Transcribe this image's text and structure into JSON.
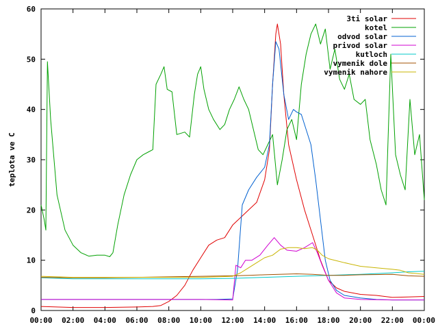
{
  "chart_data": {
    "type": "line",
    "ylabel": "teplota ve C",
    "xlabel": "",
    "ylim": [
      0,
      60
    ],
    "xlim": [
      0,
      24
    ],
    "x_ticks": [
      "00:00",
      "02:00",
      "04:00",
      "06:00",
      "08:00",
      "10:00",
      "12:00",
      "14:00",
      "16:00",
      "18:00",
      "20:00",
      "22:00",
      "00:00"
    ],
    "y_ticks": [
      0,
      10,
      20,
      30,
      40,
      50,
      60
    ],
    "legend_position": "top-right",
    "grid": false,
    "series": [
      {
        "name": "3ti solar",
        "color": "#e00000",
        "points": [
          [
            0,
            0.8
          ],
          [
            2,
            0.6
          ],
          [
            4,
            0.6
          ],
          [
            6,
            0.7
          ],
          [
            7,
            0.8
          ],
          [
            7.5,
            1
          ],
          [
            8,
            1.8
          ],
          [
            8.5,
            3
          ],
          [
            9,
            5
          ],
          [
            9.5,
            8
          ],
          [
            10,
            10.5
          ],
          [
            10.5,
            13
          ],
          [
            11,
            14
          ],
          [
            11.5,
            14.5
          ],
          [
            12,
            17
          ],
          [
            12.5,
            18.5
          ],
          [
            13,
            20
          ],
          [
            13.5,
            21.5
          ],
          [
            14,
            26
          ],
          [
            14.3,
            32
          ],
          [
            14.5,
            45
          ],
          [
            14.7,
            55
          ],
          [
            14.8,
            57
          ],
          [
            15,
            53
          ],
          [
            15.2,
            43
          ],
          [
            15.5,
            33
          ],
          [
            16,
            26
          ],
          [
            16.5,
            20
          ],
          [
            17,
            15
          ],
          [
            17.5,
            10
          ],
          [
            18,
            6
          ],
          [
            18.5,
            4.5
          ],
          [
            19,
            3.8
          ],
          [
            20,
            3.2
          ],
          [
            21,
            3
          ],
          [
            22,
            2.6
          ],
          [
            23,
            2.7
          ],
          [
            24,
            2.8
          ]
        ]
      },
      {
        "name": "kotel",
        "color": "#00a000",
        "points": [
          [
            0,
            21
          ],
          [
            0.2,
            18
          ],
          [
            0.3,
            16
          ],
          [
            0.4,
            49.5
          ],
          [
            0.6,
            38
          ],
          [
            1,
            23
          ],
          [
            1.5,
            16
          ],
          [
            2,
            13
          ],
          [
            2.5,
            11.5
          ],
          [
            3,
            10.8
          ],
          [
            3.5,
            11
          ],
          [
            4,
            11
          ],
          [
            4.3,
            10.7
          ],
          [
            4.5,
            11.5
          ],
          [
            4.8,
            17
          ],
          [
            5.2,
            23
          ],
          [
            5.6,
            27
          ],
          [
            6,
            30
          ],
          [
            6.4,
            31
          ],
          [
            6.7,
            31.5
          ],
          [
            7,
            32
          ],
          [
            7.2,
            45
          ],
          [
            7.5,
            47
          ],
          [
            7.7,
            48.5
          ],
          [
            7.9,
            44
          ],
          [
            8.2,
            43.5
          ],
          [
            8.5,
            35
          ],
          [
            9,
            35.5
          ],
          [
            9.3,
            34.5
          ],
          [
            9.6,
            43
          ],
          [
            9.8,
            47
          ],
          [
            10,
            48.5
          ],
          [
            10.2,
            44
          ],
          [
            10.5,
            40
          ],
          [
            10.8,
            38
          ],
          [
            11.2,
            36
          ],
          [
            11.5,
            37
          ],
          [
            11.8,
            40
          ],
          [
            12.1,
            42
          ],
          [
            12.4,
            44.5
          ],
          [
            12.7,
            42
          ],
          [
            13,
            40
          ],
          [
            13.3,
            36
          ],
          [
            13.6,
            32
          ],
          [
            13.9,
            31
          ],
          [
            14.2,
            33
          ],
          [
            14.5,
            35
          ],
          [
            14.8,
            25
          ],
          [
            15.1,
            30
          ],
          [
            15.4,
            36
          ],
          [
            15.7,
            38
          ],
          [
            16,
            34
          ],
          [
            16.3,
            45
          ],
          [
            16.6,
            51
          ],
          [
            16.9,
            55
          ],
          [
            17.2,
            57
          ],
          [
            17.5,
            53
          ],
          [
            17.8,
            56
          ],
          [
            18.1,
            48
          ],
          [
            18.4,
            52
          ],
          [
            18.7,
            46
          ],
          [
            19,
            44
          ],
          [
            19.3,
            47
          ],
          [
            19.6,
            42
          ],
          [
            20,
            41
          ],
          [
            20.3,
            42
          ],
          [
            20.6,
            34
          ],
          [
            21,
            29
          ],
          [
            21.3,
            24
          ],
          [
            21.6,
            21
          ],
          [
            21.9,
            51
          ],
          [
            22.2,
            31
          ],
          [
            22.5,
            27
          ],
          [
            22.8,
            24
          ],
          [
            23.1,
            42
          ],
          [
            23.4,
            31
          ],
          [
            23.7,
            35
          ],
          [
            24,
            22
          ]
        ]
      },
      {
        "name": "odvod solar",
        "color": "#0060d0",
        "points": [
          [
            0,
            2.2
          ],
          [
            2,
            2.2
          ],
          [
            4,
            2.2
          ],
          [
            6,
            2.2
          ],
          [
            8,
            2.2
          ],
          [
            10,
            2.2
          ],
          [
            11,
            2.2
          ],
          [
            12,
            2.3
          ],
          [
            12.3,
            8
          ],
          [
            12.6,
            21
          ],
          [
            13,
            24
          ],
          [
            13.5,
            26.5
          ],
          [
            14,
            28.5
          ],
          [
            14.3,
            33
          ],
          [
            14.5,
            45
          ],
          [
            14.7,
            53.5
          ],
          [
            14.9,
            52
          ],
          [
            15.2,
            43
          ],
          [
            15.5,
            38
          ],
          [
            15.8,
            40
          ],
          [
            16,
            39.5
          ],
          [
            16.3,
            39
          ],
          [
            16.6,
            36
          ],
          [
            16.9,
            33
          ],
          [
            17.2,
            26
          ],
          [
            17.5,
            18
          ],
          [
            17.8,
            10
          ],
          [
            18.1,
            6
          ],
          [
            18.5,
            4
          ],
          [
            19,
            3
          ],
          [
            20,
            2.5
          ],
          [
            21,
            2.2
          ],
          [
            22,
            2.1
          ],
          [
            23,
            2.1
          ],
          [
            24,
            2.1
          ]
        ]
      },
      {
        "name": "privod solar",
        "color": "#d000d0",
        "points": [
          [
            0,
            2.2
          ],
          [
            4,
            2.2
          ],
          [
            8,
            2.2
          ],
          [
            10,
            2.2
          ],
          [
            12,
            2.1
          ],
          [
            12.2,
            9
          ],
          [
            12.5,
            8.5
          ],
          [
            12.8,
            10
          ],
          [
            13.2,
            10
          ],
          [
            13.7,
            11
          ],
          [
            14.2,
            13
          ],
          [
            14.6,
            14.5
          ],
          [
            15,
            13
          ],
          [
            15.4,
            12
          ],
          [
            16,
            11.8
          ],
          [
            16.5,
            12.5
          ],
          [
            17,
            13.5
          ],
          [
            17.3,
            11.5
          ],
          [
            17.6,
            9
          ],
          [
            18,
            6
          ],
          [
            18.5,
            3.5
          ],
          [
            19,
            2.5
          ],
          [
            20,
            2.2
          ],
          [
            22,
            2.1
          ],
          [
            24,
            2.1
          ]
        ]
      },
      {
        "name": "kutloch",
        "color": "#00c8c8",
        "points": [
          [
            0,
            6.5
          ],
          [
            2,
            6.3
          ],
          [
            4,
            6.3
          ],
          [
            6,
            6.3
          ],
          [
            8,
            6.3
          ],
          [
            10,
            6.3
          ],
          [
            12,
            6.4
          ],
          [
            14,
            6.6
          ],
          [
            16,
            6.8
          ],
          [
            18,
            7
          ],
          [
            20,
            7.2
          ],
          [
            22,
            7.5
          ],
          [
            23,
            7.7
          ],
          [
            24,
            7.8
          ]
        ]
      },
      {
        "name": "vymenik dole",
        "color": "#a05000",
        "points": [
          [
            0,
            6.6
          ],
          [
            2,
            6.5
          ],
          [
            4,
            6.5
          ],
          [
            6,
            6.6
          ],
          [
            8,
            6.7
          ],
          [
            10,
            6.8
          ],
          [
            12,
            6.9
          ],
          [
            13,
            7
          ],
          [
            14,
            7.1
          ],
          [
            16,
            7.3
          ],
          [
            17,
            7.2
          ],
          [
            18,
            7
          ],
          [
            19,
            7
          ],
          [
            20,
            7.1
          ],
          [
            22,
            7.2
          ],
          [
            23,
            6.9
          ],
          [
            24,
            6.8
          ]
        ]
      },
      {
        "name": "vymenik nahore",
        "color": "#c8b400",
        "points": [
          [
            0,
            6.8
          ],
          [
            2,
            6.6
          ],
          [
            4,
            6.6
          ],
          [
            6,
            6.6
          ],
          [
            8,
            6.6
          ],
          [
            10,
            6.6
          ],
          [
            12,
            6.8
          ],
          [
            12.5,
            7.5
          ],
          [
            13,
            8.5
          ],
          [
            13.5,
            9.5
          ],
          [
            14,
            10.5
          ],
          [
            14.5,
            11
          ],
          [
            15,
            12.2
          ],
          [
            15.5,
            12.5
          ],
          [
            16,
            12.5
          ],
          [
            16.5,
            12.3
          ],
          [
            17,
            12.5
          ],
          [
            17.3,
            12
          ],
          [
            17.6,
            11
          ],
          [
            18,
            10.3
          ],
          [
            19,
            9.5
          ],
          [
            20,
            8.8
          ],
          [
            21,
            8.5
          ],
          [
            22,
            8.2
          ],
          [
            22.5,
            8
          ],
          [
            23,
            7.5
          ],
          [
            24,
            7.2
          ]
        ]
      }
    ]
  }
}
